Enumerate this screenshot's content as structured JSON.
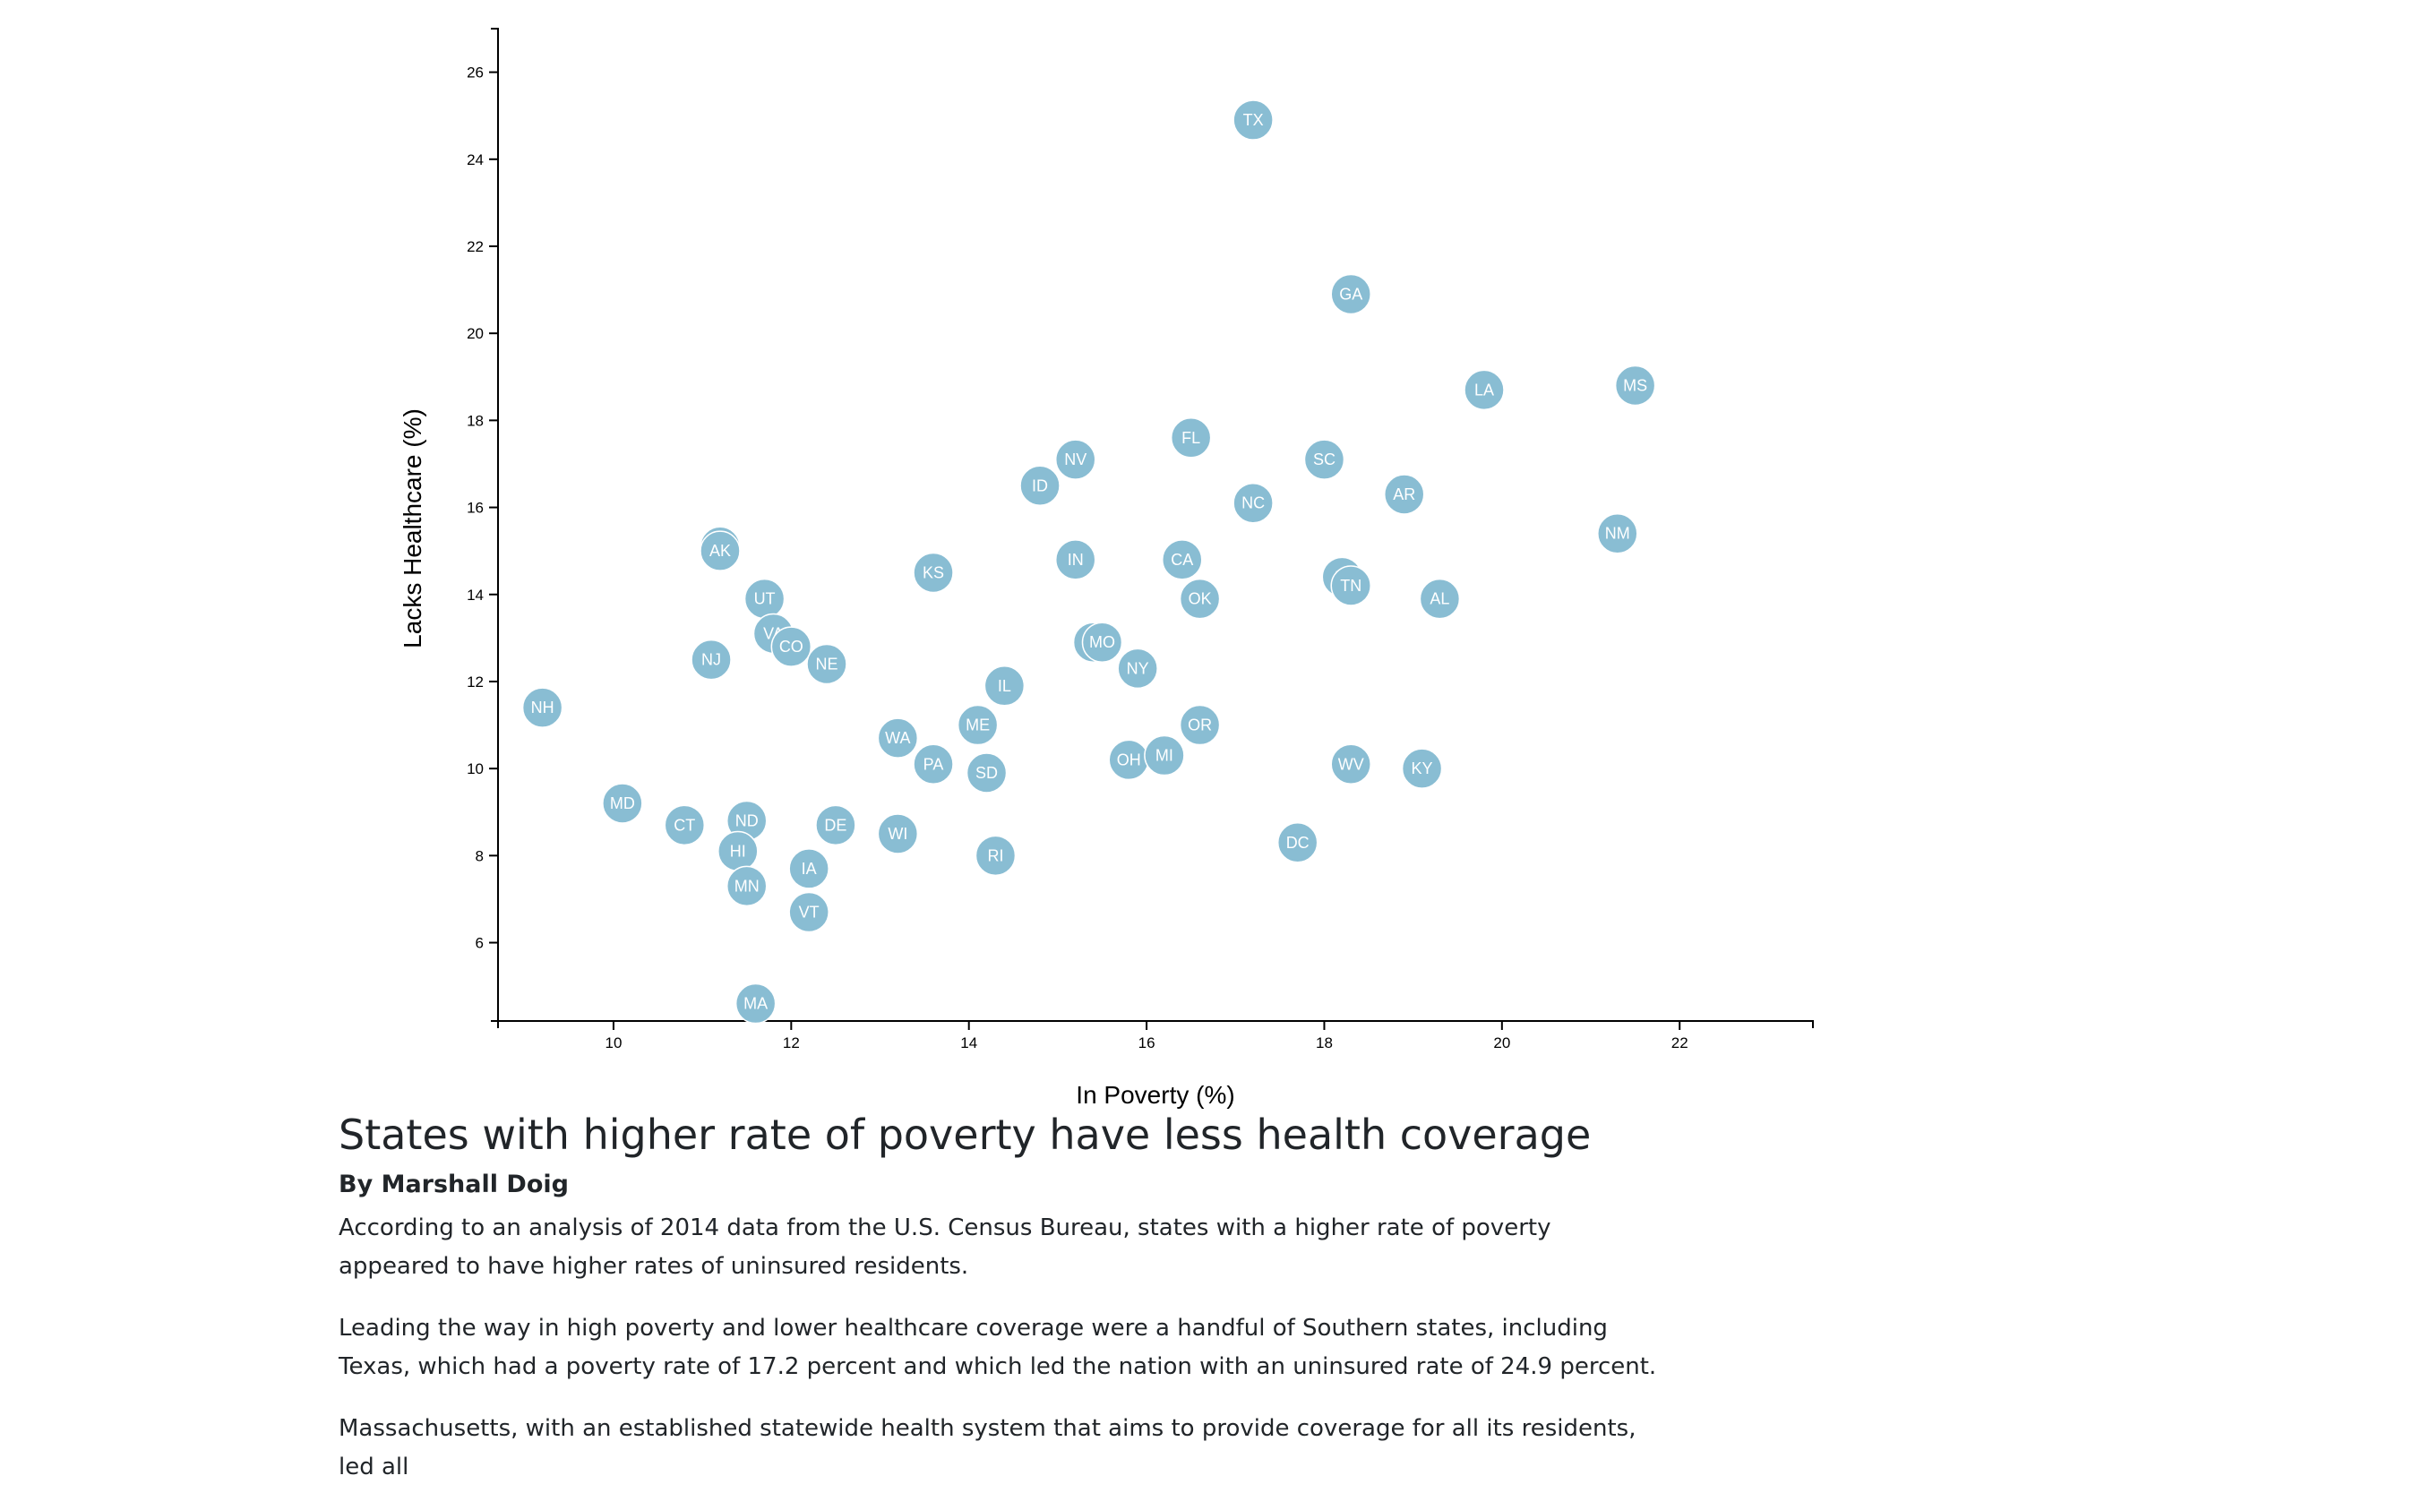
{
  "chart_data": {
    "type": "scatter",
    "xlabel": "In Poverty (%)",
    "ylabel": "Lacks Healthcare (%)",
    "xlim": [
      8.7,
      23.5
    ],
    "ylim": [
      4.2,
      27
    ],
    "xticks": [
      10,
      12,
      14,
      16,
      18,
      20,
      22
    ],
    "yticks": [
      6,
      8,
      10,
      12,
      14,
      16,
      18,
      20,
      22,
      24,
      26
    ],
    "marker_color": "#89bdd3",
    "label_color": "#ffffff",
    "grid": false,
    "points": [
      {
        "label": "TX",
        "x": 17.2,
        "y": 24.9
      },
      {
        "label": "GA",
        "x": 18.3,
        "y": 20.9
      },
      {
        "label": "LA",
        "x": 19.8,
        "y": 18.7
      },
      {
        "label": "MS",
        "x": 21.5,
        "y": 18.8
      },
      {
        "label": "FL",
        "x": 16.5,
        "y": 17.6
      },
      {
        "label": "NV",
        "x": 15.2,
        "y": 17.1
      },
      {
        "label": "SC",
        "x": 18.0,
        "y": 17.1
      },
      {
        "label": "ID",
        "x": 14.8,
        "y": 16.5
      },
      {
        "label": "AR",
        "x": 18.9,
        "y": 16.3
      },
      {
        "label": "NC",
        "x": 17.2,
        "y": 16.1
      },
      {
        "label": "NM",
        "x": 21.3,
        "y": 15.4
      },
      {
        "label": "WY",
        "x": 11.2,
        "y": 15.1
      },
      {
        "label": "AK",
        "x": 11.2,
        "y": 15.0
      },
      {
        "label": "IN",
        "x": 15.2,
        "y": 14.8
      },
      {
        "label": "CA",
        "x": 16.4,
        "y": 14.8
      },
      {
        "label": "KS",
        "x": 13.6,
        "y": 14.5
      },
      {
        "label": "AZ",
        "x": 18.2,
        "y": 14.4
      },
      {
        "label": "TN",
        "x": 18.3,
        "y": 14.2
      },
      {
        "label": "UT",
        "x": 11.7,
        "y": 13.9
      },
      {
        "label": "OK",
        "x": 16.6,
        "y": 13.9
      },
      {
        "label": "AL",
        "x": 19.3,
        "y": 13.9
      },
      {
        "label": "VA",
        "x": 11.8,
        "y": 13.1
      },
      {
        "label": "CO",
        "x": 12.0,
        "y": 12.8
      },
      {
        "label": "MT",
        "x": 15.4,
        "y": 12.9
      },
      {
        "label": "MO",
        "x": 15.5,
        "y": 12.9
      },
      {
        "label": "NJ",
        "x": 11.1,
        "y": 12.5
      },
      {
        "label": "NE",
        "x": 12.4,
        "y": 12.4
      },
      {
        "label": "NY",
        "x": 15.9,
        "y": 12.3
      },
      {
        "label": "IL",
        "x": 14.4,
        "y": 11.9
      },
      {
        "label": "NH",
        "x": 9.2,
        "y": 11.4
      },
      {
        "label": "ME",
        "x": 14.1,
        "y": 11.0
      },
      {
        "label": "OR",
        "x": 16.6,
        "y": 11.0
      },
      {
        "label": "WA",
        "x": 13.2,
        "y": 10.7
      },
      {
        "label": "PA",
        "x": 13.6,
        "y": 10.1
      },
      {
        "label": "SD",
        "x": 14.2,
        "y": 9.9
      },
      {
        "label": "OH",
        "x": 15.8,
        "y": 10.2
      },
      {
        "label": "MI",
        "x": 16.2,
        "y": 10.3
      },
      {
        "label": "WV",
        "x": 18.3,
        "y": 10.1
      },
      {
        "label": "KY",
        "x": 19.1,
        "y": 10.0
      },
      {
        "label": "MD",
        "x": 10.1,
        "y": 9.2
      },
      {
        "label": "CT",
        "x": 10.8,
        "y": 8.7
      },
      {
        "label": "ND",
        "x": 11.5,
        "y": 8.8
      },
      {
        "label": "DE",
        "x": 12.5,
        "y": 8.7
      },
      {
        "label": "WI",
        "x": 13.2,
        "y": 8.5
      },
      {
        "label": "DC",
        "x": 17.7,
        "y": 8.3
      },
      {
        "label": "HI",
        "x": 11.4,
        "y": 8.1
      },
      {
        "label": "RI",
        "x": 14.3,
        "y": 8.0
      },
      {
        "label": "IA",
        "x": 12.2,
        "y": 7.7
      },
      {
        "label": "MN",
        "x": 11.5,
        "y": 7.3
      },
      {
        "label": "VT",
        "x": 12.2,
        "y": 6.7
      },
      {
        "label": "MA",
        "x": 11.6,
        "y": 4.6
      }
    ]
  },
  "article": {
    "title": "States with higher rate of poverty have less health coverage",
    "byline": "By Marshall Doig",
    "p1": "According to an analysis of 2014 data from the U.S. Census Bureau, states with a higher rate of poverty appeared to have higher rates of uninsured residents.",
    "p2": "Leading the way in high poverty and lower healthcare coverage were a handful of Southern states, including Texas, which had a poverty rate of 17.2 percent and which led the nation with an uninsured rate of 24.9 percent.",
    "p3": "Massachusetts, with an established statewide health system that aims to provide coverage for all its residents, led all"
  }
}
